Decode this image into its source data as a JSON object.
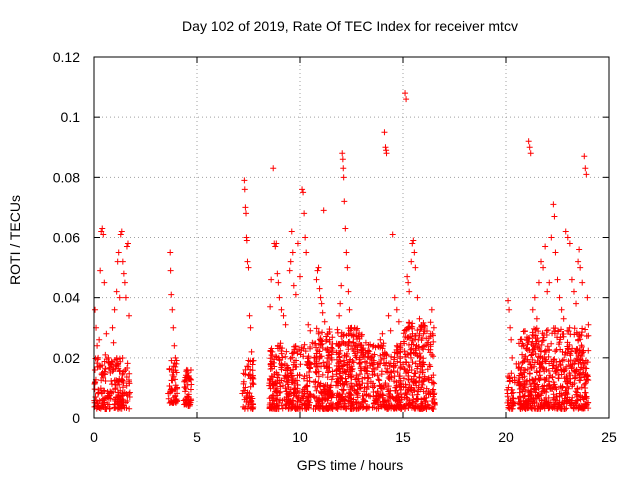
{
  "chart_data": {
    "type": "scatter",
    "title": "Day 102 of 2019, Rate Of TEC Index for receiver mtcv",
    "xlabel": "GPS time / hours",
    "ylabel": "ROTI / TECUs",
    "xlim": [
      0,
      25
    ],
    "ylim": [
      0,
      0.12
    ],
    "x_ticks": [
      "0",
      "5",
      "10",
      "15",
      "20",
      "25"
    ],
    "y_ticks": [
      "0",
      "0.02",
      "0.04",
      "0.06",
      "0.08",
      "0.1",
      "0.12"
    ],
    "grid": true,
    "marker": "plus",
    "color": "#ff0000",
    "series": [
      {
        "points": [
          [
            0.05,
            0.036
          ],
          [
            0.1,
            0.03
          ],
          [
            0.15,
            0.024
          ],
          [
            0.2,
            0.02
          ],
          [
            0.25,
            0.026
          ],
          [
            0.3,
            0.049
          ],
          [
            0.35,
            0.062
          ],
          [
            0.4,
            0.063
          ],
          [
            0.45,
            0.061
          ],
          [
            0.5,
            0.045
          ],
          [
            0.6,
            0.028
          ],
          [
            0.7,
            0.02
          ],
          [
            0.8,
            0.018
          ],
          [
            0.9,
            0.03
          ],
          [
            1.0,
            0.036
          ],
          [
            1.1,
            0.042
          ],
          [
            1.15,
            0.052
          ],
          [
            1.2,
            0.055
          ],
          [
            1.3,
            0.061
          ],
          [
            1.35,
            0.062
          ],
          [
            1.4,
            0.052
          ],
          [
            1.45,
            0.048
          ],
          [
            1.5,
            0.045
          ],
          [
            1.55,
            0.04
          ],
          [
            1.6,
            0.057
          ],
          [
            1.65,
            0.058
          ],
          [
            1.7,
            0.034
          ],
          [
            1.25,
            0.04
          ],
          [
            0.95,
            0.025
          ],
          [
            0.55,
            0.021
          ],
          [
            3.7,
            0.055
          ],
          [
            3.72,
            0.049
          ],
          [
            3.75,
            0.041
          ],
          [
            3.8,
            0.036
          ],
          [
            3.85,
            0.03
          ],
          [
            3.9,
            0.024
          ],
          [
            3.95,
            0.02
          ],
          [
            4.0,
            0.018
          ],
          [
            4.5,
            0.016
          ],
          [
            4.55,
            0.015
          ],
          [
            4.6,
            0.014
          ],
          [
            4.65,
            0.013
          ],
          [
            7.3,
            0.079
          ],
          [
            7.32,
            0.076
          ],
          [
            7.35,
            0.07
          ],
          [
            7.38,
            0.068
          ],
          [
            7.4,
            0.06
          ],
          [
            7.42,
            0.059
          ],
          [
            7.45,
            0.052
          ],
          [
            7.5,
            0.05
          ],
          [
            7.55,
            0.034
          ],
          [
            7.6,
            0.03
          ],
          [
            7.65,
            0.022
          ],
          [
            7.7,
            0.019
          ],
          [
            8.7,
            0.083
          ],
          [
            8.75,
            0.058
          ],
          [
            8.8,
            0.057
          ],
          [
            8.85,
            0.058
          ],
          [
            8.9,
            0.048
          ],
          [
            8.95,
            0.045
          ],
          [
            9.0,
            0.04
          ],
          [
            9.1,
            0.036
          ],
          [
            9.2,
            0.034
          ],
          [
            9.3,
            0.031
          ],
          [
            8.6,
            0.046
          ],
          [
            8.55,
            0.037
          ],
          [
            9.5,
            0.049
          ],
          [
            9.55,
            0.052
          ],
          [
            9.6,
            0.062
          ],
          [
            9.65,
            0.055
          ],
          [
            9.7,
            0.044
          ],
          [
            9.8,
            0.041
          ],
          [
            9.9,
            0.058
          ],
          [
            10.0,
            0.047
          ],
          [
            10.1,
            0.076
          ],
          [
            10.15,
            0.075
          ],
          [
            10.2,
            0.068
          ],
          [
            10.25,
            0.06
          ],
          [
            10.3,
            0.055
          ],
          [
            10.4,
            0.031
          ],
          [
            10.5,
            0.029
          ],
          [
            10.6,
            0.025
          ],
          [
            10.8,
            0.046
          ],
          [
            10.85,
            0.049
          ],
          [
            10.9,
            0.05
          ],
          [
            10.95,
            0.043
          ],
          [
            11.0,
            0.04
          ],
          [
            11.05,
            0.038
          ],
          [
            11.1,
            0.035
          ],
          [
            11.15,
            0.069
          ],
          [
            11.2,
            0.032
          ],
          [
            11.3,
            0.026
          ],
          [
            11.4,
            0.022
          ],
          [
            11.5,
            0.02
          ],
          [
            11.9,
            0.034
          ],
          [
            11.95,
            0.038
          ],
          [
            12.0,
            0.044
          ],
          [
            12.05,
            0.088
          ],
          [
            12.08,
            0.086
          ],
          [
            12.1,
            0.083
          ],
          [
            12.12,
            0.08
          ],
          [
            12.15,
            0.072
          ],
          [
            12.2,
            0.063
          ],
          [
            12.25,
            0.055
          ],
          [
            12.3,
            0.05
          ],
          [
            12.35,
            0.042
          ],
          [
            12.4,
            0.036
          ],
          [
            12.5,
            0.03
          ],
          [
            12.6,
            0.027
          ],
          [
            12.7,
            0.024
          ],
          [
            12.8,
            0.022
          ],
          [
            12.9,
            0.02
          ],
          [
            13.2,
            0.025
          ],
          [
            13.3,
            0.022
          ],
          [
            13.4,
            0.02
          ],
          [
            13.5,
            0.018
          ],
          [
            13.6,
            0.016
          ],
          [
            13.8,
            0.024
          ],
          [
            13.9,
            0.026
          ],
          [
            14.0,
            0.028
          ],
          [
            14.1,
            0.095
          ],
          [
            14.15,
            0.09
          ],
          [
            14.18,
            0.089
          ],
          [
            14.2,
            0.088
          ],
          [
            14.3,
            0.034
          ],
          [
            14.4,
            0.029
          ],
          [
            14.5,
            0.061
          ],
          [
            14.6,
            0.04
          ],
          [
            14.7,
            0.036
          ],
          [
            14.8,
            0.032
          ],
          [
            15.1,
            0.108
          ],
          [
            15.15,
            0.106
          ],
          [
            15.2,
            0.047
          ],
          [
            15.25,
            0.045
          ],
          [
            15.3,
            0.042
          ],
          [
            15.4,
            0.052
          ],
          [
            15.45,
            0.058
          ],
          [
            15.5,
            0.059
          ],
          [
            15.55,
            0.055
          ],
          [
            15.6,
            0.05
          ],
          [
            15.7,
            0.04
          ],
          [
            15.8,
            0.033
          ],
          [
            15.9,
            0.03
          ],
          [
            16.0,
            0.028
          ],
          [
            16.2,
            0.025
          ],
          [
            16.4,
            0.036
          ],
          [
            16.5,
            0.03
          ],
          [
            20.1,
            0.039
          ],
          [
            20.15,
            0.036
          ],
          [
            20.2,
            0.03
          ],
          [
            20.25,
            0.026
          ],
          [
            20.3,
            0.02
          ],
          [
            20.5,
            0.018
          ],
          [
            20.7,
            0.016
          ],
          [
            20.9,
            0.019
          ],
          [
            21.1,
            0.092
          ],
          [
            21.15,
            0.09
          ],
          [
            21.2,
            0.088
          ],
          [
            21.3,
            0.036
          ],
          [
            21.4,
            0.04
          ],
          [
            21.5,
            0.033
          ],
          [
            21.6,
            0.045
          ],
          [
            21.7,
            0.052
          ],
          [
            21.8,
            0.05
          ],
          [
            21.9,
            0.057
          ],
          [
            22.0,
            0.042
          ],
          [
            22.1,
            0.045
          ],
          [
            22.2,
            0.06
          ],
          [
            22.3,
            0.071
          ],
          [
            22.35,
            0.067
          ],
          [
            22.4,
            0.055
          ],
          [
            22.5,
            0.046
          ],
          [
            22.6,
            0.04
          ],
          [
            22.7,
            0.036
          ],
          [
            22.8,
            0.033
          ],
          [
            22.9,
            0.062
          ],
          [
            23.0,
            0.06
          ],
          [
            23.1,
            0.058
          ],
          [
            23.2,
            0.046
          ],
          [
            23.3,
            0.042
          ],
          [
            23.4,
            0.038
          ],
          [
            23.5,
            0.052
          ],
          [
            23.55,
            0.056
          ],
          [
            23.6,
            0.05
          ],
          [
            23.7,
            0.045
          ],
          [
            23.8,
            0.087
          ],
          [
            23.85,
            0.083
          ],
          [
            23.9,
            0.081
          ],
          [
            23.95,
            0.04
          ],
          [
            24.0,
            0.031
          ]
        ]
      }
    ],
    "dense_segments": [
      {
        "x0": 0.0,
        "x1": 1.75,
        "ymin": 0.003,
        "ymax": 0.02,
        "n": 200
      },
      {
        "x0": 3.6,
        "x1": 4.05,
        "ymin": 0.005,
        "ymax": 0.02,
        "n": 50
      },
      {
        "x0": 4.35,
        "x1": 4.75,
        "ymin": 0.004,
        "ymax": 0.016,
        "n": 45
      },
      {
        "x0": 7.2,
        "x1": 7.75,
        "ymin": 0.003,
        "ymax": 0.02,
        "n": 60
      },
      {
        "x0": 8.5,
        "x1": 10.55,
        "ymin": 0.003,
        "ymax": 0.025,
        "n": 320
      },
      {
        "x0": 10.65,
        "x1": 11.6,
        "ymin": 0.003,
        "ymax": 0.03,
        "n": 180
      },
      {
        "x0": 11.75,
        "x1": 13.1,
        "ymin": 0.003,
        "ymax": 0.03,
        "n": 260
      },
      {
        "x0": 13.1,
        "x1": 14.95,
        "ymin": 0.003,
        "ymax": 0.025,
        "n": 260
      },
      {
        "x0": 15.0,
        "x1": 16.55,
        "ymin": 0.003,
        "ymax": 0.032,
        "n": 260
      },
      {
        "x0": 20.05,
        "x1": 20.45,
        "ymin": 0.003,
        "ymax": 0.015,
        "n": 40
      },
      {
        "x0": 20.6,
        "x1": 24.0,
        "ymin": 0.003,
        "ymax": 0.03,
        "n": 600
      }
    ]
  }
}
